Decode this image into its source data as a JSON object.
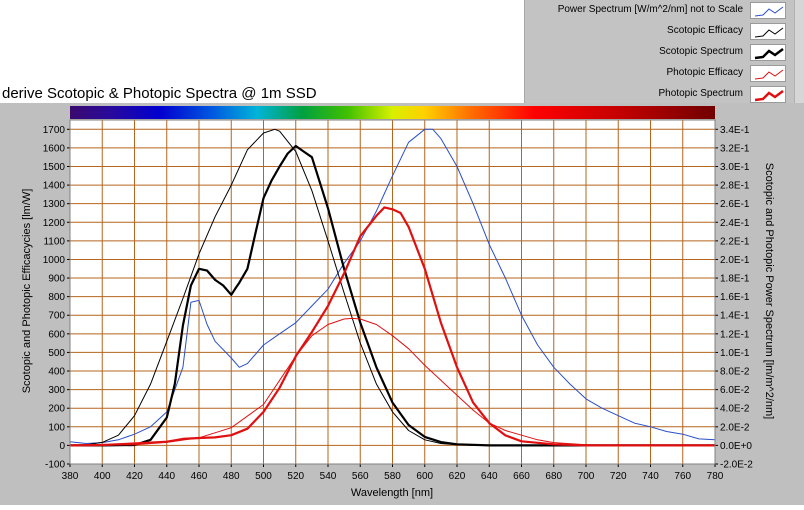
{
  "title": "derive Scotopic & Photopic Spectra @ 1m SSD",
  "legend": [
    {
      "label": "Power Spectrum [W/m^2/nm] not to Scale",
      "color": "#2a4fc8",
      "weight": "thin"
    },
    {
      "label": "Scotopic Efficacy",
      "color": "#000000",
      "weight": "thin"
    },
    {
      "label": "Scotopic Spectrum",
      "color": "#000000",
      "weight": "thick"
    },
    {
      "label": "Photopic Efficacy",
      "color": "#e01010",
      "weight": "thin"
    },
    {
      "label": "Photopic Spectrum",
      "color": "#e01010",
      "weight": "thick"
    }
  ],
  "colors": {
    "plot_background": "#ffffff",
    "grid": "#b5651d",
    "frame": "#bfbfbf",
    "power": "#2a4fc8",
    "scotopic": "#000000",
    "photopic": "#e01010"
  },
  "chart_data": {
    "type": "line",
    "xlabel": "Wavelength [nm]",
    "ylabel": "Scotopic and Photopic Efficacycies [lm/W]",
    "ylabel_right": "Scotopic and Photopic Power Spectrum [lm/m^2/nm]",
    "xlim": [
      380,
      780
    ],
    "ylim": [
      -100,
      1750
    ],
    "ylim_right": [
      -0.02,
      0.35
    ],
    "grid": true,
    "legend_position": "top-right",
    "x_ticks": [
      "380",
      "400",
      "420",
      "440",
      "460",
      "480",
      "500",
      "520",
      "540",
      "560",
      "580",
      "600",
      "620",
      "640",
      "660",
      "680",
      "700",
      "720",
      "740",
      "760",
      "780"
    ],
    "y_ticks": [
      "-100",
      "0",
      "100",
      "200",
      "300",
      "400",
      "500",
      "600",
      "700",
      "800",
      "900",
      "1000",
      "1100",
      "1200",
      "1300",
      "1400",
      "1500",
      "1600",
      "1700"
    ],
    "y_ticks_right": [
      "-2.0E-2",
      "0.0E+0",
      "2.0E-2",
      "4.0E-2",
      "6.0E-2",
      "8.0E-2",
      "1.0E-1",
      "1.2E-1",
      "1.4E-1",
      "1.6E-1",
      "1.8E-1",
      "2.0E-1",
      "2.2E-1",
      "2.4E-1",
      "2.6E-1",
      "2.8E-1",
      "3.0E-1",
      "3.2E-1",
      "3.4E-1"
    ],
    "series": [
      {
        "name": "Power Spectrum [W/m^2/nm] not to Scale",
        "axis": "left",
        "x": [
          380,
          390,
          400,
          410,
          420,
          430,
          440,
          450,
          455,
          460,
          465,
          470,
          480,
          485,
          490,
          500,
          510,
          520,
          530,
          540,
          550,
          560,
          570,
          580,
          590,
          600,
          605,
          610,
          620,
          630,
          640,
          650,
          660,
          670,
          680,
          690,
          700,
          710,
          720,
          730,
          740,
          750,
          760,
          770,
          780
        ],
        "y": [
          20,
          10,
          15,
          30,
          60,
          100,
          180,
          420,
          770,
          780,
          650,
          560,
          470,
          420,
          440,
          540,
          600,
          660,
          750,
          840,
          980,
          1100,
          1260,
          1450,
          1630,
          1700,
          1700,
          1650,
          1500,
          1300,
          1080,
          900,
          700,
          540,
          420,
          330,
          250,
          200,
          160,
          120,
          100,
          75,
          60,
          35,
          30
        ]
      },
      {
        "name": "Scotopic Efficacy",
        "axis": "left",
        "x": [
          380,
          390,
          400,
          410,
          420,
          430,
          440,
          450,
          460,
          470,
          480,
          490,
          500,
          507,
          510,
          520,
          530,
          540,
          550,
          560,
          570,
          580,
          590,
          600,
          610,
          620,
          630,
          640,
          650,
          660,
          670,
          680,
          700,
          720,
          740,
          760,
          780
        ],
        "y": [
          1,
          4,
          16,
          55,
          160,
          330,
          560,
          790,
          1030,
          1230,
          1400,
          1590,
          1680,
          1700,
          1690,
          1580,
          1370,
          1100,
          820,
          550,
          330,
          180,
          80,
          30,
          10,
          3,
          1,
          0,
          0,
          0,
          0,
          0,
          0,
          0,
          0,
          0,
          0
        ]
      },
      {
        "name": "Scotopic Spectrum",
        "axis": "right",
        "x": [
          380,
          400,
          420,
          430,
          440,
          445,
          450,
          455,
          460,
          465,
          470,
          475,
          480,
          483,
          485,
          490,
          495,
          500,
          505,
          510,
          515,
          520,
          525,
          530,
          540,
          550,
          560,
          570,
          580,
          590,
          600,
          610,
          620,
          640,
          660,
          680,
          700,
          720,
          740,
          760,
          780
        ],
        "y": [
          0.0,
          0.0,
          0.0004,
          0.006,
          0.03,
          0.066,
          0.129,
          0.172,
          0.19,
          0.188,
          0.178,
          0.172,
          0.162,
          0.17,
          0.175,
          0.19,
          0.228,
          0.266,
          0.285,
          0.3,
          0.314,
          0.322,
          0.316,
          0.31,
          0.255,
          0.19,
          0.132,
          0.084,
          0.046,
          0.022,
          0.0092,
          0.0036,
          0.0012,
          0.0,
          0.0,
          0.0,
          0.0,
          0.0,
          0.0,
          0.0,
          0.0
        ]
      },
      {
        "name": "Photopic Efficacy",
        "axis": "left",
        "x": [
          380,
          400,
          420,
          440,
          460,
          480,
          500,
          510,
          520,
          530,
          540,
          550,
          555,
          560,
          570,
          580,
          590,
          600,
          610,
          620,
          630,
          640,
          650,
          660,
          670,
          680,
          700,
          720,
          740,
          760,
          780
        ],
        "y": [
          0,
          1,
          4,
          16,
          41,
          95,
          220,
          350,
          480,
          590,
          650,
          680,
          683,
          680,
          650,
          590,
          520,
          430,
          350,
          270,
          190,
          120,
          80,
          55,
          30,
          15,
          3,
          0,
          0,
          0,
          0
        ]
      },
      {
        "name": "Photopic Spectrum",
        "axis": "right",
        "x": [
          380,
          400,
          420,
          440,
          450,
          460,
          470,
          480,
          490,
          500,
          510,
          520,
          530,
          540,
          550,
          560,
          570,
          575,
          580,
          585,
          590,
          600,
          610,
          620,
          630,
          640,
          650,
          660,
          680,
          700,
          720,
          740,
          760,
          780
        ],
        "y": [
          0.0,
          0.0004,
          0.002,
          0.004,
          0.007,
          0.008,
          0.0086,
          0.011,
          0.018,
          0.036,
          0.062,
          0.096,
          0.122,
          0.15,
          0.185,
          0.225,
          0.247,
          0.256,
          0.254,
          0.25,
          0.235,
          0.19,
          0.132,
          0.084,
          0.046,
          0.024,
          0.0108,
          0.0044,
          0.0012,
          0.0,
          0.0,
          0.0,
          0.0,
          0.0
        ]
      }
    ]
  }
}
